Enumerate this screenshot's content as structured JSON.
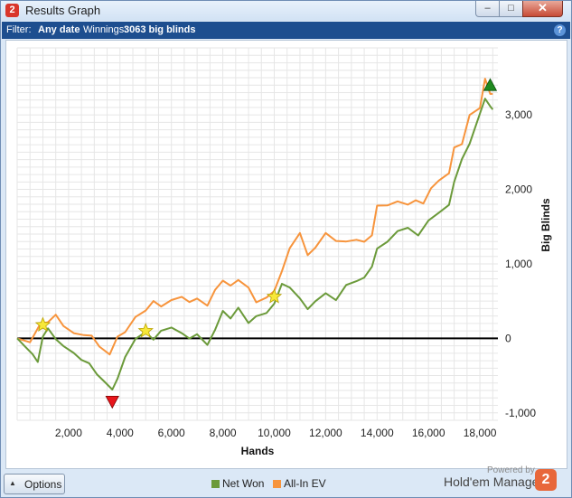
{
  "window": {
    "title": "Results Graph",
    "app_icon": "2",
    "min": "–",
    "max": "□",
    "close": "✕"
  },
  "filter": {
    "label": "Filter:",
    "date_value": "Any date",
    "winnings_label": "Winnings:",
    "winnings_value": "3063 big blinds",
    "help_icon": "?"
  },
  "footer": {
    "options_label": "Options",
    "options_icon": "▲",
    "legend": [
      {
        "label": "Net Won",
        "color": "#6b9a3a"
      },
      {
        "label": "All-In EV",
        "color": "#f7943c"
      }
    ],
    "powered_by": "Powered by",
    "brand": "Hold'em Manager",
    "brand_logo": "2"
  },
  "chart_data": {
    "type": "line",
    "title": "",
    "xlabel": "Hands",
    "ylabel": "Big Blinds",
    "xlim": [
      0,
      18700
    ],
    "ylim": [
      -1100,
      3900
    ],
    "x_ticks": [
      2000,
      4000,
      6000,
      8000,
      10000,
      12000,
      14000,
      16000,
      18000
    ],
    "x_tick_labels": [
      "2,000",
      "4,000",
      "6,000",
      "8,000",
      "10,000",
      "12,000",
      "14,000",
      "16,000",
      "18,000"
    ],
    "y_ticks": [
      -1000,
      0,
      1000,
      2000,
      3000
    ],
    "y_tick_labels": [
      "-1,000",
      "0",
      "1,000",
      "2,000",
      "3,000"
    ],
    "grid": true,
    "zero_line": true,
    "series": [
      {
        "name": "All-In EV",
        "color": "#f7943c",
        "points": [
          [
            0,
            0
          ],
          [
            500,
            -60
          ],
          [
            900,
            180
          ],
          [
            1200,
            200
          ],
          [
            1500,
            300
          ],
          [
            1800,
            150
          ],
          [
            2200,
            60
          ],
          [
            2600,
            40
          ],
          [
            2900,
            40
          ],
          [
            3200,
            -100
          ],
          [
            3600,
            -200
          ],
          [
            3900,
            40
          ],
          [
            4200,
            100
          ],
          [
            4600,
            300
          ],
          [
            5000,
            380
          ],
          [
            5300,
            500
          ],
          [
            5600,
            420
          ],
          [
            6000,
            500
          ],
          [
            6400,
            540
          ],
          [
            6700,
            470
          ],
          [
            7000,
            520
          ],
          [
            7400,
            430
          ],
          [
            7700,
            650
          ],
          [
            8000,
            780
          ],
          [
            8300,
            720
          ],
          [
            8600,
            800
          ],
          [
            9000,
            700
          ],
          [
            9300,
            500
          ],
          [
            9700,
            560
          ],
          [
            10000,
            640
          ],
          [
            10300,
            900
          ],
          [
            10600,
            1200
          ],
          [
            11000,
            1400
          ],
          [
            11300,
            1100
          ],
          [
            11600,
            1200
          ],
          [
            12000,
            1400
          ],
          [
            12400,
            1300
          ],
          [
            12800,
            1300
          ],
          [
            13200,
            1330
          ],
          [
            13500,
            1310
          ],
          [
            13800,
            1400
          ],
          [
            14000,
            1800
          ],
          [
            14400,
            1800
          ],
          [
            14800,
            1850
          ],
          [
            15200,
            1800
          ],
          [
            15500,
            1850
          ],
          [
            15800,
            1800
          ],
          [
            16100,
            2000
          ],
          [
            16400,
            2100
          ],
          [
            16800,
            2200
          ],
          [
            17000,
            2550
          ],
          [
            17300,
            2600
          ],
          [
            17600,
            3000
          ],
          [
            18000,
            3100
          ],
          [
            18200,
            3500
          ],
          [
            18400,
            3300
          ],
          [
            18500,
            3300
          ]
        ]
      },
      {
        "name": "Net Won",
        "color": "#6b9a3a",
        "points": [
          [
            0,
            0
          ],
          [
            300,
            -100
          ],
          [
            600,
            -200
          ],
          [
            800,
            -300
          ],
          [
            1000,
            40
          ],
          [
            1200,
            150
          ],
          [
            1500,
            0
          ],
          [
            1800,
            -100
          ],
          [
            2200,
            -200
          ],
          [
            2500,
            -300
          ],
          [
            2800,
            -350
          ],
          [
            3100,
            -500
          ],
          [
            3400,
            -600
          ],
          [
            3700,
            -700
          ],
          [
            3900,
            -550
          ],
          [
            4200,
            -250
          ],
          [
            4600,
            0
          ],
          [
            5000,
            100
          ],
          [
            5300,
            0
          ],
          [
            5600,
            120
          ],
          [
            6000,
            160
          ],
          [
            6400,
            80
          ],
          [
            6700,
            0
          ],
          [
            7000,
            50
          ],
          [
            7400,
            -100
          ],
          [
            7700,
            100
          ],
          [
            8000,
            350
          ],
          [
            8300,
            250
          ],
          [
            8600,
            400
          ],
          [
            9000,
            200
          ],
          [
            9300,
            300
          ],
          [
            9700,
            350
          ],
          [
            10000,
            480
          ],
          [
            10300,
            750
          ],
          [
            10600,
            700
          ],
          [
            11000,
            550
          ],
          [
            11300,
            400
          ],
          [
            11600,
            500
          ],
          [
            12000,
            600
          ],
          [
            12400,
            500
          ],
          [
            12800,
            700
          ],
          [
            13200,
            750
          ],
          [
            13500,
            800
          ],
          [
            13800,
            950
          ],
          [
            14000,
            1200
          ],
          [
            14400,
            1300
          ],
          [
            14800,
            1450
          ],
          [
            15200,
            1500
          ],
          [
            15600,
            1400
          ],
          [
            16000,
            1600
          ],
          [
            16400,
            1700
          ],
          [
            16800,
            1800
          ],
          [
            17000,
            2100
          ],
          [
            17300,
            2400
          ],
          [
            17600,
            2600
          ],
          [
            18000,
            3000
          ],
          [
            18200,
            3200
          ],
          [
            18400,
            3100
          ],
          [
            18500,
            3063
          ]
        ]
      }
    ],
    "markers": [
      {
        "type": "star",
        "color": "#f7e83a",
        "x": 1000,
        "y": 180
      },
      {
        "type": "star",
        "color": "#f7e83a",
        "x": 5000,
        "y": 100
      },
      {
        "type": "star",
        "color": "#f7e83a",
        "x": 10000,
        "y": 560
      },
      {
        "type": "triangle-down",
        "color": "#e8151b",
        "x": 3700,
        "y": -850
      },
      {
        "type": "triangle-up",
        "color": "#1f8a1f",
        "x": 18400,
        "y": 3400
      }
    ]
  }
}
